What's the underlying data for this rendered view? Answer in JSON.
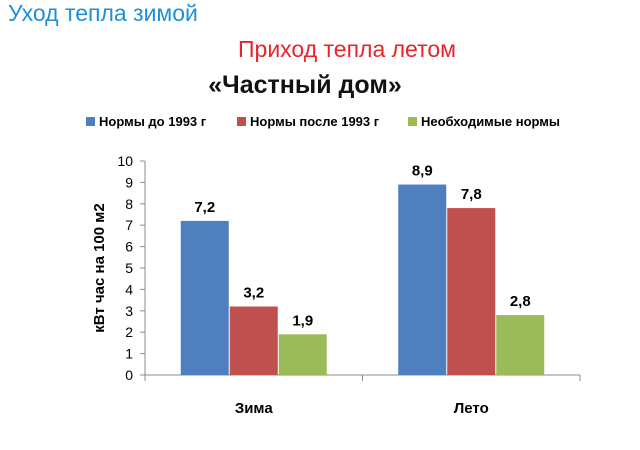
{
  "headers": {
    "winter_heat_loss": "Уход тепла зимой",
    "summer_heat_gain": "Приход тепла летом"
  },
  "colors": {
    "winter_heading": "#1f8fd6",
    "summer_heading": "#e8242a"
  },
  "chart_data": {
    "type": "bar",
    "title": "«Частный дом»",
    "categories": [
      "Зима",
      "Лето"
    ],
    "series": [
      {
        "name": "Нормы до 1993 г",
        "values": [
          7.2,
          8.9
        ],
        "labels": [
          "7,2",
          "8,9"
        ],
        "color": "#4f7fbe"
      },
      {
        "name": "Нормы после 1993 г",
        "values": [
          3.2,
          7.8
        ],
        "labels": [
          "3,2",
          "7,8"
        ],
        "color": "#c0504d"
      },
      {
        "name": "Необходимые нормы",
        "values": [
          1.9,
          2.8
        ],
        "labels": [
          "1,9",
          "2,8"
        ],
        "color": "#9bbb59"
      }
    ],
    "xlabel": "",
    "ylabel": "кВт час на 100 м2",
    "ylim": [
      0,
      10
    ],
    "yticks": [
      "0",
      "1",
      "2",
      "3",
      "4",
      "5",
      "6",
      "7",
      "8",
      "9",
      "10"
    ],
    "grid": false,
    "legend_position": "top"
  }
}
